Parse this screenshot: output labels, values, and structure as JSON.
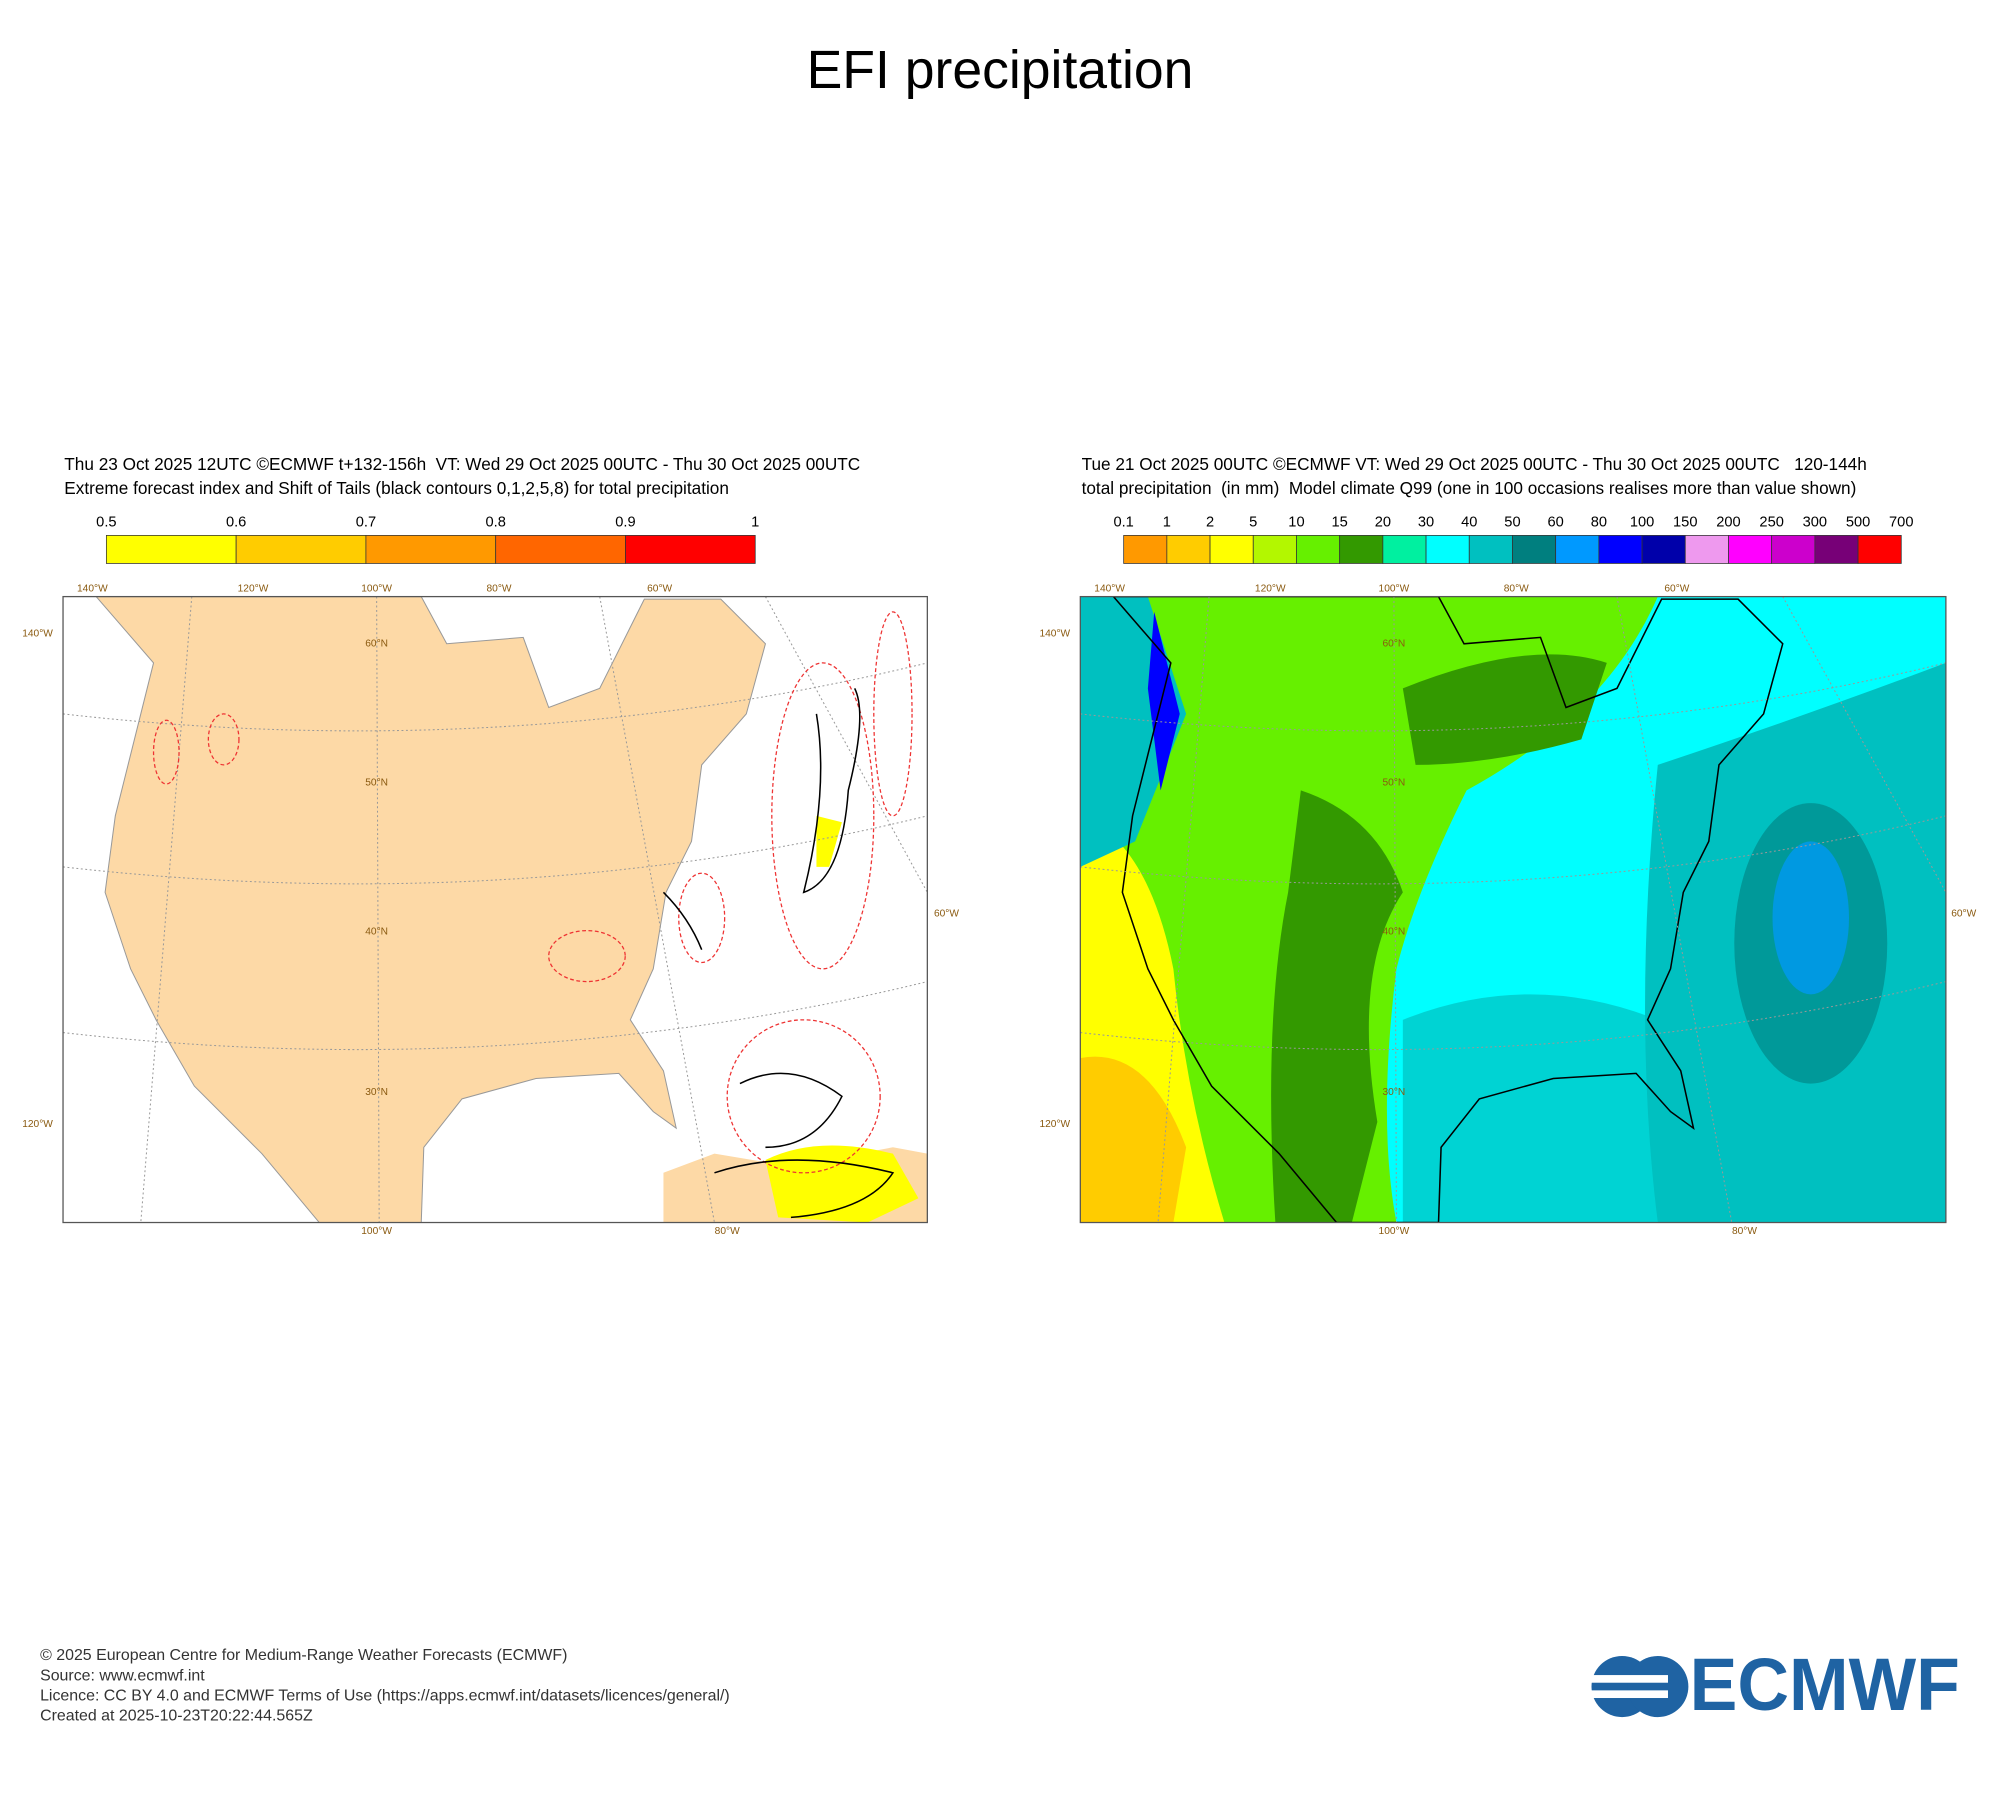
{
  "title": "EFI precipitation",
  "panels": [
    {
      "header": [
        "Thu 23 Oct 2025 12UTC ©ECMWF t+132-156h  VT: Wed 29 Oct 2025 00UTC - Thu 30 Oct 2025 00UTC",
        "Extreme forecast index and Shift of Tails (black contours 0,1,2,5,8) for total precipitation"
      ],
      "colorbar": {
        "labels": [
          "0.5",
          "0.6",
          "0.7",
          "0.8",
          "0.9",
          "1"
        ],
        "colors": [
          "#ffff00",
          "#ffcc00",
          "#ff9900",
          "#ff6600",
          "#ff0000"
        ]
      },
      "grid_labels": [
        "140°W",
        "120°W",
        "100°W",
        "80°W",
        "60°W",
        "60°N",
        "50°N",
        "40°N",
        "30°N",
        "140°W",
        "120°W",
        "60°W",
        "100°W",
        "80°W"
      ]
    },
    {
      "header": [
        "Tue 21 Oct 2025 00UTC ©ECMWF VT: Wed 29 Oct 2025 00UTC - Thu 30 Oct 2025 00UTC   120-144h",
        "total precipitation  (in mm)  Model climate Q99 (one in 100 occasions realises more than value shown)"
      ],
      "colorbar": {
        "labels": [
          "0.1",
          "1",
          "2",
          "5",
          "10",
          "15",
          "20",
          "30",
          "40",
          "50",
          "60",
          "80",
          "100",
          "150",
          "200",
          "250",
          "300",
          "500",
          "700"
        ],
        "colors": [
          "#ff9900",
          "#ffcc00",
          "#ffff00",
          "#b3f700",
          "#66f000",
          "#339900",
          "#00f0a0",
          "#00ffff",
          "#00c0c0",
          "#007f7f",
          "#0099ff",
          "#0000ff",
          "#0000aa",
          "#ee99ee",
          "#ff00ff",
          "#cc00cc",
          "#770077",
          "#ff0000"
        ]
      },
      "grid_labels": [
        "140°W",
        "120°W",
        "100°W",
        "80°W",
        "60°W",
        "60°N",
        "50°N",
        "40°N",
        "30°N",
        "140°W",
        "120°W",
        "60°W",
        "100°W",
        "80°W"
      ]
    }
  ],
  "footer": [
    "© 2025 European Centre for Medium-Range Weather Forecasts (ECMWF)",
    "Source: www.ecmwf.int",
    "Licence: CC BY 4.0 and ECMWF Terms of Use (https://apps.ecmwf.int/datasets/licences/general/)",
    "Created at 2025-10-23T20:22:44.565Z"
  ],
  "logo": "ECMWF"
}
